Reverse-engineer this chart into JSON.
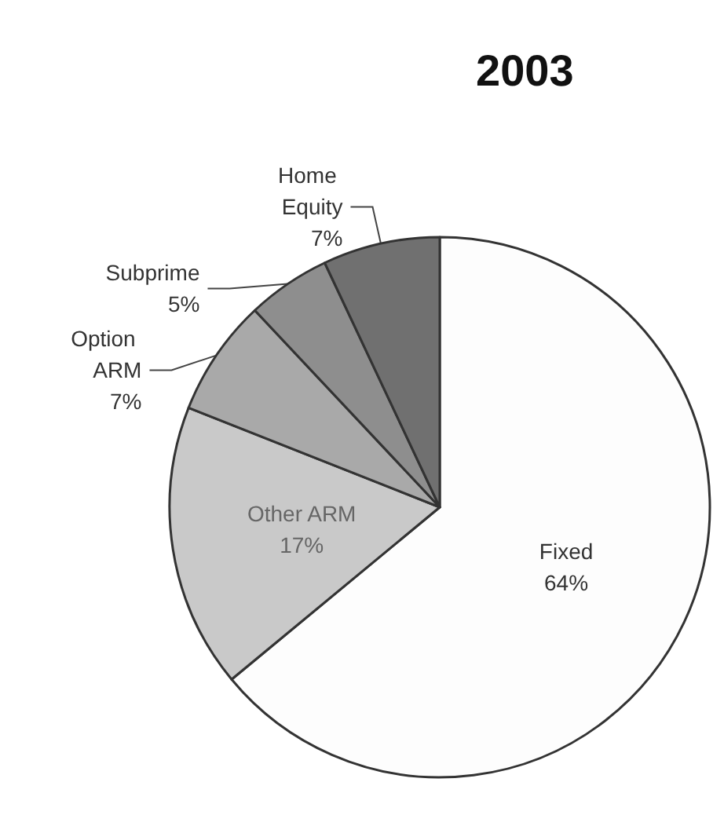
{
  "chart_data": {
    "type": "pie",
    "title": "2003",
    "categories": [
      "Fixed",
      "Other ARM",
      "Option ARM",
      "Subprime",
      "Home Equity"
    ],
    "values": [
      64,
      17,
      7,
      5,
      7
    ],
    "value_labels": [
      "64%",
      "17%",
      "7%",
      "5%",
      "7%"
    ],
    "colors": [
      "#fdfdfd",
      "#c9c9c9",
      "#a9a9a9",
      "#8e8e8e",
      "#707070"
    ],
    "legend": false
  }
}
